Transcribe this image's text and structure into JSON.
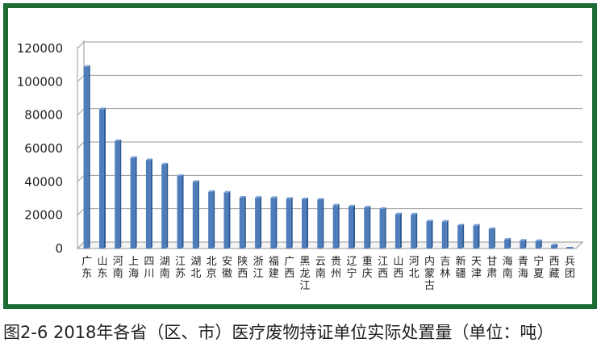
{
  "caption": "图2-6 2018年各省（区、市）医疗废物持证单位实际处置量（单位：吨）",
  "colors": {
    "frame": "#1c6b35",
    "bar": "#4f7dbb",
    "bar_dark": "#2d5a94",
    "grid": "#9a9a9a"
  },
  "chart_data": {
    "type": "bar",
    "title": "",
    "xlabel": "",
    "ylabel": "",
    "ylim": [
      0,
      120000
    ],
    "yticks": [
      0,
      20000,
      40000,
      60000,
      80000,
      100000,
      120000
    ],
    "grid": true,
    "categories": [
      "广东",
      "山东",
      "河南",
      "上海",
      "四川",
      "湖南",
      "江苏",
      "湖北",
      "北京",
      "安徽",
      "陕西",
      "浙江",
      "福建",
      "广西",
      "黑龙江",
      "云南",
      "贵州",
      "辽宁",
      "重庆",
      "江西",
      "山西",
      "河北",
      "内蒙古",
      "吉林",
      "新疆",
      "天津",
      "甘肃",
      "海南",
      "青海",
      "宁夏",
      "西藏",
      "兵团"
    ],
    "values": [
      109000,
      83500,
      64500,
      54300,
      53000,
      50400,
      43500,
      40000,
      34000,
      33500,
      30500,
      30400,
      30300,
      29800,
      29600,
      29300,
      25800,
      25200,
      24600,
      23800,
      20500,
      20400,
      16300,
      16100,
      13800,
      13700,
      11700,
      5400,
      4700,
      4500,
      2000,
      0
    ]
  }
}
